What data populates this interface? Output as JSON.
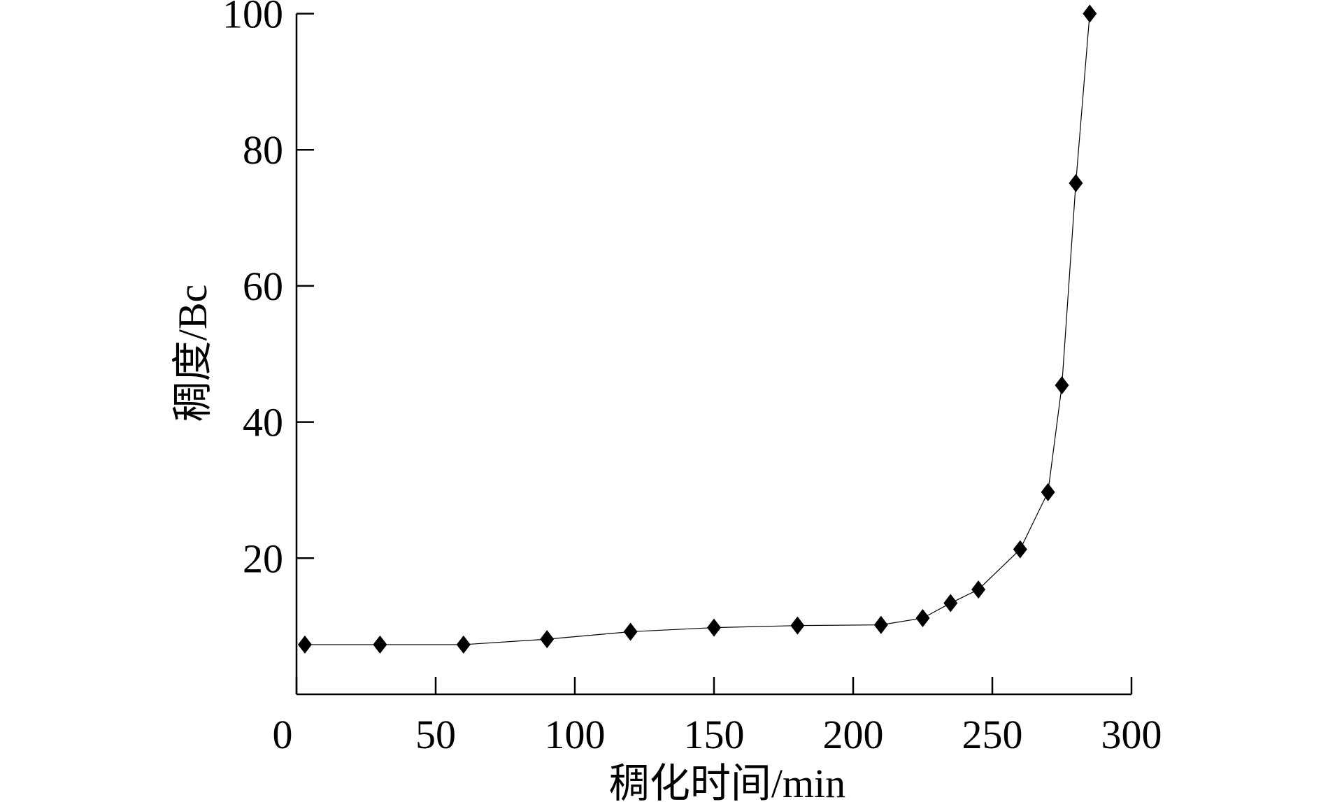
{
  "chart_data": {
    "type": "line",
    "title": "",
    "xlabel": "稠化时间/min",
    "ylabel": "稠度/Bc",
    "xlim": [
      0,
      300
    ],
    "ylim": [
      0,
      100
    ],
    "xticks": [
      0,
      50,
      100,
      150,
      200,
      250,
      300
    ],
    "yticks": [
      20,
      40,
      60,
      80,
      100
    ],
    "xtick_labels": [
      "0",
      "50",
      "100",
      "150",
      "200",
      "250",
      "300"
    ],
    "ytick_labels": [
      "20",
      "40",
      "60",
      "80",
      "100"
    ],
    "grid": false,
    "marker": "diamond",
    "series": [
      {
        "x": [
          3,
          30,
          60,
          90,
          120,
          150,
          180,
          210,
          225,
          235,
          245,
          260,
          270,
          275,
          280,
          285
        ],
        "y": [
          7.3,
          7.3,
          7.3,
          8.1,
          9.2,
          9.8,
          10.1,
          10.2,
          11.2,
          13.4,
          15.4,
          21.3,
          29.7,
          45.4,
          75.1,
          100
        ],
        "color": "#000000"
      }
    ]
  }
}
